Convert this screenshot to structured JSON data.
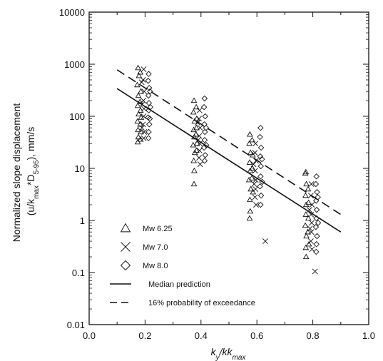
{
  "chart_data": {
    "type": "scatter",
    "y_scale": "log",
    "xlim": [
      0.0,
      1.0
    ],
    "ylim": [
      0.01,
      10000
    ],
    "x_ticks": [
      {
        "value": 0.0,
        "label": "0.0"
      },
      {
        "value": 0.2,
        "label": "0.2"
      },
      {
        "value": 0.4,
        "label": "0.4"
      },
      {
        "value": 0.6,
        "label": "0.6"
      },
      {
        "value": 0.8,
        "label": "0.8"
      },
      {
        "value": 1.0,
        "label": "1.0"
      }
    ],
    "y_ticks": [
      {
        "value": 0.01,
        "label": "0.01"
      },
      {
        "value": 0.1,
        "label": "0.1"
      },
      {
        "value": 1,
        "label": "1"
      },
      {
        "value": 10,
        "label": "10"
      },
      {
        "value": 100,
        "label": "100"
      },
      {
        "value": 1000,
        "label": "1000"
      },
      {
        "value": 10000,
        "label": "10000"
      }
    ],
    "xlabel": {
      "main": "k",
      "sub1": "y",
      "mid": "/k",
      "sub2": "max"
    },
    "ylabel": {
      "line1": "Normalized slope displacement",
      "line2_a": "(u/k",
      "line2_sub1": "max",
      "line2_b": "*D",
      "line2_sub2": "5-95",
      "line2_c": "), mm/s"
    },
    "grid": false,
    "legend_position": "bottom-left",
    "legend": [
      {
        "marker": "triangle",
        "label": "Mw 6.25"
      },
      {
        "marker": "cross",
        "label": "Mw 7.0"
      },
      {
        "marker": "diamond",
        "label": "Mw 8.0"
      },
      {
        "marker": "solid-line",
        "label": "Median prediction"
      },
      {
        "marker": "dashed-line",
        "label": "16% probability of exceedance"
      }
    ],
    "lines": [
      {
        "name": "Median prediction",
        "style": "solid",
        "x": [
          0.1,
          0.9
        ],
        "y": [
          340,
          0.6
        ]
      },
      {
        "name": "16% probability of exceedance",
        "style": "dashed",
        "x": [
          0.1,
          0.9
        ],
        "y": [
          780,
          1.3
        ]
      }
    ],
    "series": [
      {
        "name": "Mw 6.25",
        "marker": "triangle",
        "points": [
          [
            0.175,
            850
          ],
          [
            0.178,
            600
          ],
          [
            0.172,
            400
          ],
          [
            0.176,
            250
          ],
          [
            0.174,
            160
          ],
          [
            0.177,
            110
          ],
          [
            0.173,
            80
          ],
          [
            0.175,
            55
          ],
          [
            0.176,
            40
          ],
          [
            0.174,
            32
          ],
          [
            0.183,
            700
          ],
          [
            0.185,
            300
          ],
          [
            0.182,
            190
          ],
          [
            0.184,
            130
          ],
          [
            0.186,
            95
          ],
          [
            0.183,
            70
          ],
          [
            0.185,
            50
          ],
          [
            0.184,
            36
          ],
          [
            0.375,
            200
          ],
          [
            0.373,
            120
          ],
          [
            0.377,
            80
          ],
          [
            0.374,
            55
          ],
          [
            0.376,
            40
          ],
          [
            0.372,
            28
          ],
          [
            0.378,
            20
          ],
          [
            0.374,
            14
          ],
          [
            0.376,
            9
          ],
          [
            0.375,
            5
          ],
          [
            0.383,
            150
          ],
          [
            0.385,
            90
          ],
          [
            0.384,
            60
          ],
          [
            0.382,
            45
          ],
          [
            0.386,
            30
          ],
          [
            0.384,
            22
          ],
          [
            0.575,
            45
          ],
          [
            0.573,
            30
          ],
          [
            0.577,
            20
          ],
          [
            0.574,
            13
          ],
          [
            0.576,
            9
          ],
          [
            0.572,
            6
          ],
          [
            0.578,
            4
          ],
          [
            0.575,
            2.5
          ],
          [
            0.576,
            1.5
          ],
          [
            0.574,
            1.1
          ],
          [
            0.583,
            35
          ],
          [
            0.585,
            18
          ],
          [
            0.584,
            10
          ],
          [
            0.582,
            6.5
          ],
          [
            0.586,
            3.5
          ],
          [
            0.775,
            8.5
          ],
          [
            0.773,
            8
          ],
          [
            0.777,
            5
          ],
          [
            0.774,
            3
          ],
          [
            0.776,
            2
          ],
          [
            0.775,
            1.3
          ],
          [
            0.773,
            0.8
          ],
          [
            0.777,
            0.5
          ],
          [
            0.775,
            0.3
          ],
          [
            0.776,
            0.2
          ],
          [
            0.783,
            4
          ],
          [
            0.785,
            2.2
          ],
          [
            0.784,
            1.1
          ],
          [
            0.782,
            0.6
          ],
          [
            0.786,
            0.35
          ]
        ]
      },
      {
        "name": "Mw 7.0",
        "marker": "cross",
        "points": [
          [
            0.195,
            800
          ],
          [
            0.193,
            500
          ],
          [
            0.197,
            300
          ],
          [
            0.194,
            200
          ],
          [
            0.196,
            140
          ],
          [
            0.195,
            100
          ],
          [
            0.193,
            70
          ],
          [
            0.197,
            50
          ],
          [
            0.195,
            38
          ],
          [
            0.188,
            450
          ],
          [
            0.19,
            170
          ],
          [
            0.189,
            60
          ],
          [
            0.395,
            130
          ],
          [
            0.393,
            90
          ],
          [
            0.397,
            60
          ],
          [
            0.394,
            42
          ],
          [
            0.396,
            30
          ],
          [
            0.395,
            22
          ],
          [
            0.393,
            16
          ],
          [
            0.397,
            12
          ],
          [
            0.388,
            75
          ],
          [
            0.39,
            35
          ],
          [
            0.595,
            30
          ],
          [
            0.593,
            20
          ],
          [
            0.597,
            14
          ],
          [
            0.594,
            9
          ],
          [
            0.596,
            6
          ],
          [
            0.595,
            4
          ],
          [
            0.593,
            2.8
          ],
          [
            0.597,
            2
          ],
          [
            0.588,
            12
          ],
          [
            0.59,
            5
          ],
          [
            0.63,
            0.4
          ],
          [
            0.795,
            5
          ],
          [
            0.793,
            3
          ],
          [
            0.797,
            2
          ],
          [
            0.794,
            1.3
          ],
          [
            0.796,
            0.9
          ],
          [
            0.795,
            0.6
          ],
          [
            0.793,
            0.4
          ],
          [
            0.797,
            0.28
          ],
          [
            0.788,
            1.6
          ],
          [
            0.79,
            0.7
          ],
          [
            0.808,
            0.105
          ]
        ]
      },
      {
        "name": "Mw 8.0",
        "marker": "diamond",
        "points": [
          [
            0.213,
            650
          ],
          [
            0.211,
            480
          ],
          [
            0.215,
            350
          ],
          [
            0.212,
            250
          ],
          [
            0.214,
            180
          ],
          [
            0.213,
            130
          ],
          [
            0.211,
            95
          ],
          [
            0.215,
            70
          ],
          [
            0.213,
            50
          ],
          [
            0.212,
            38
          ],
          [
            0.218,
            300
          ],
          [
            0.219,
            150
          ],
          [
            0.217,
            90
          ],
          [
            0.413,
            220
          ],
          [
            0.411,
            150
          ],
          [
            0.415,
            100
          ],
          [
            0.412,
            70
          ],
          [
            0.414,
            50
          ],
          [
            0.413,
            35
          ],
          [
            0.411,
            25
          ],
          [
            0.415,
            18
          ],
          [
            0.413,
            14
          ],
          [
            0.418,
            60
          ],
          [
            0.419,
            28
          ],
          [
            0.613,
            60
          ],
          [
            0.611,
            40
          ],
          [
            0.615,
            25
          ],
          [
            0.612,
            17
          ],
          [
            0.614,
            11
          ],
          [
            0.613,
            7
          ],
          [
            0.611,
            4.5
          ],
          [
            0.615,
            3
          ],
          [
            0.613,
            2
          ],
          [
            0.618,
            15
          ],
          [
            0.619,
            5.5
          ],
          [
            0.813,
            7
          ],
          [
            0.811,
            5
          ],
          [
            0.815,
            3.5
          ],
          [
            0.812,
            2.4
          ],
          [
            0.814,
            1.6
          ],
          [
            0.813,
            1.1
          ],
          [
            0.811,
            0.75
          ],
          [
            0.815,
            0.5
          ],
          [
            0.813,
            0.35
          ],
          [
            0.812,
            0.25
          ],
          [
            0.818,
            2.8
          ],
          [
            0.819,
            0.9
          ]
        ]
      }
    ]
  }
}
